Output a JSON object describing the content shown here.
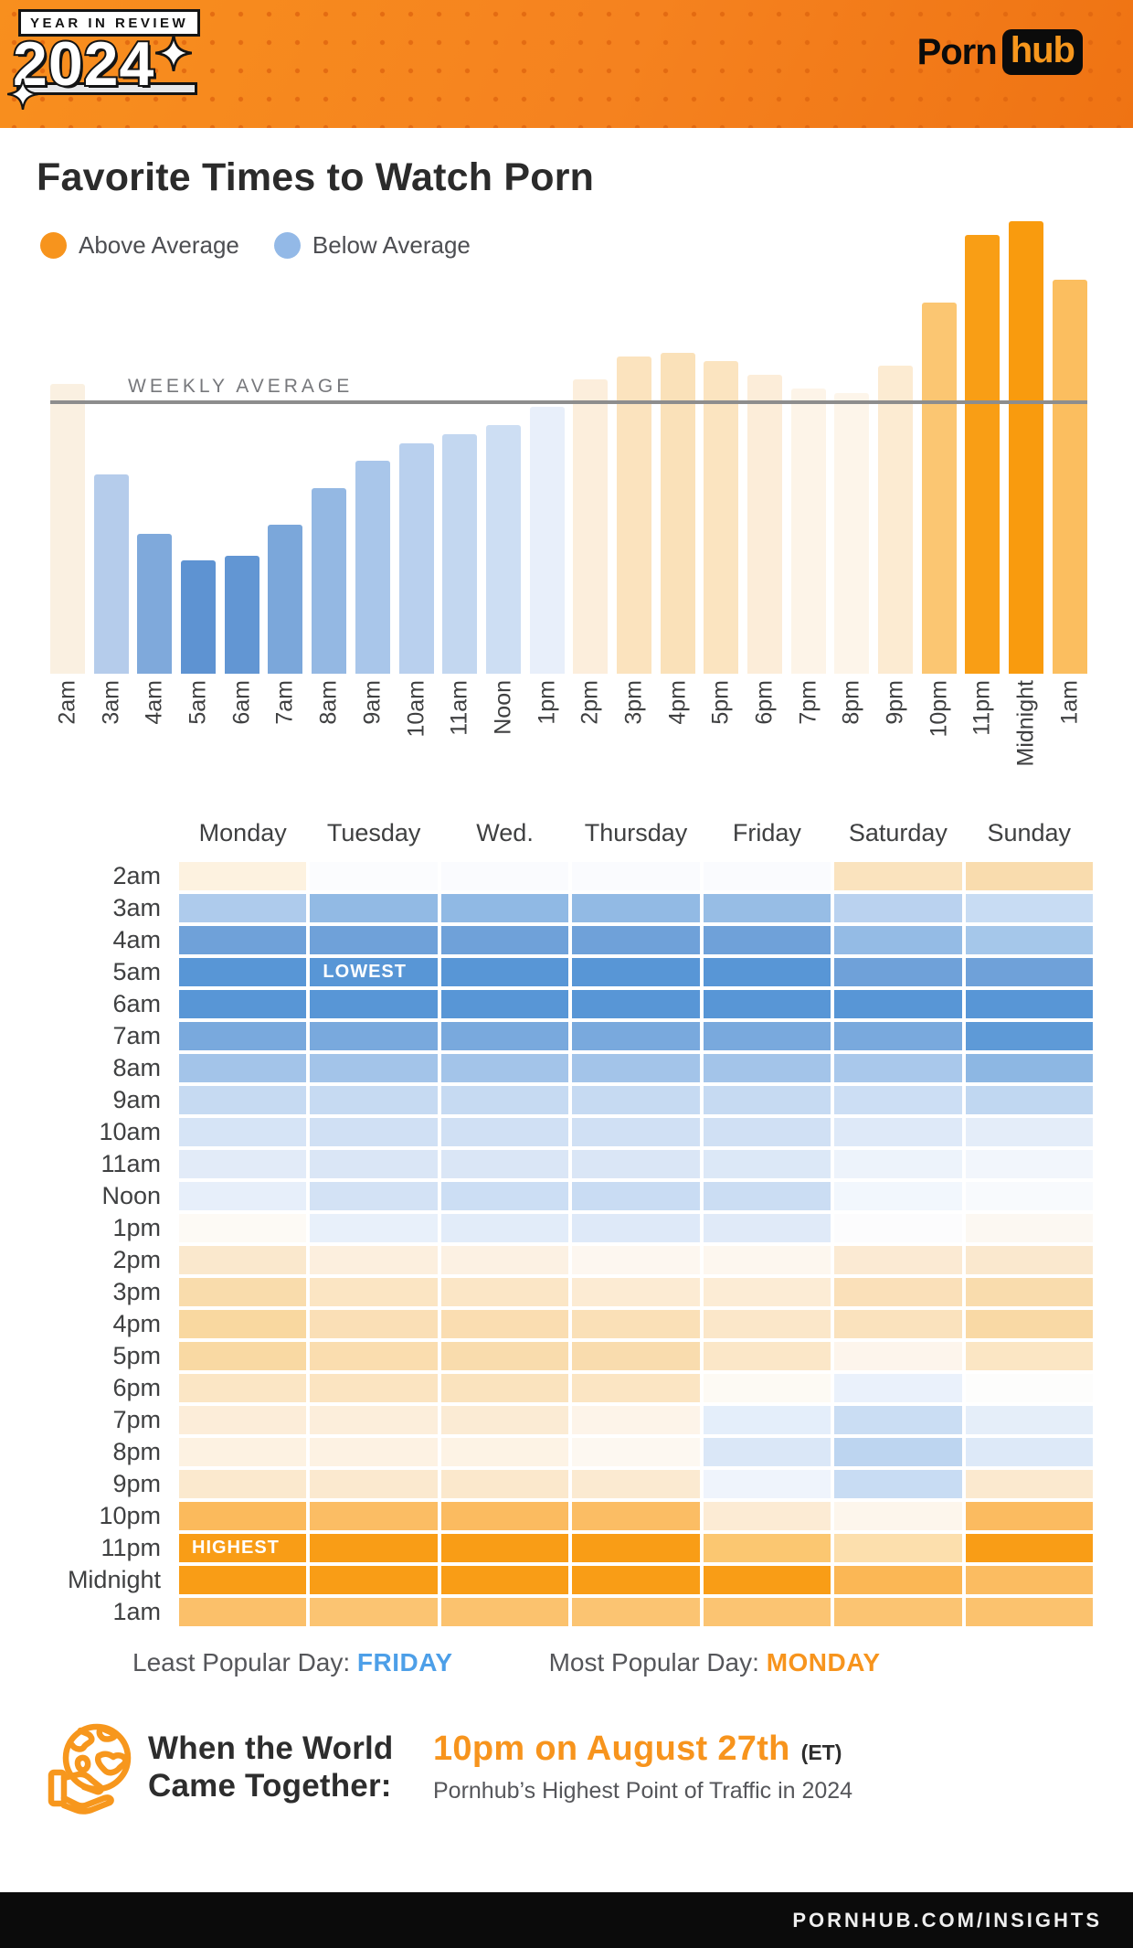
{
  "header": {
    "badge_label": "YEAR IN REVIEW",
    "badge_year": "2024",
    "brand_left": "Porn",
    "brand_right": "hub"
  },
  "title": "Favorite Times to Watch Porn",
  "legend": [
    {
      "label": "Above Average",
      "color": "#F7941D"
    },
    {
      "label": "Below Average",
      "color": "#93B9E7"
    }
  ],
  "chart_data": [
    {
      "type": "bar",
      "title": "Favorite Times to Watch Porn — traffic by hour",
      "categories": [
        "2am",
        "3am",
        "4am",
        "5am",
        "6am",
        "7am",
        "8am",
        "9am",
        "10am",
        "11am",
        "Noon",
        "1pm",
        "2pm",
        "3pm",
        "4pm",
        "5pm",
        "6pm",
        "7pm",
        "8pm",
        "9pm",
        "10pm",
        "11pm",
        "Midnight",
        "1am"
      ],
      "values_pct_of_peak": [
        64,
        44,
        31,
        25,
        26,
        33,
        41,
        47,
        51,
        53,
        55,
        59,
        65,
        70,
        71,
        69,
        66,
        63,
        62,
        68,
        82,
        97,
        100,
        87
      ],
      "weekly_average_pct_of_peak": 59.5,
      "average_label": "WEEKLY AVERAGE",
      "bar_colors": [
        "#FAF0E1",
        "#B5CCEB",
        "#7FA9DB",
        "#5E93D2",
        "#6296D3",
        "#7BA7DA",
        "#94B8E3",
        "#A9C6EA",
        "#B9D0EE",
        "#C3D7F0",
        "#CDDEF3",
        "#E8EFFA",
        "#FCEEDC",
        "#FBE3BE",
        "#FAE1B9",
        "#FBE4C0",
        "#FCEDD9",
        "#FDF4E8",
        "#FDF5EA",
        "#FCEBD2",
        "#FBC672",
        "#F99E15",
        "#F99B0E",
        "#FBBE5F"
      ],
      "legend_entries": [
        "Above Average (orange)",
        "Below Average (blue)"
      ],
      "grid": false,
      "ylabel": "",
      "xlabel": ""
    },
    {
      "type": "heatmap",
      "columns": [
        "Monday",
        "Tuesday",
        "Wed.",
        "Thursday",
        "Friday",
        "Saturday",
        "Sunday"
      ],
      "rows": [
        "2am",
        "3am",
        "4am",
        "5am",
        "6am",
        "7am",
        "8am",
        "9am",
        "10am",
        "11am",
        "Noon",
        "1pm",
        "2pm",
        "3pm",
        "4pm",
        "5pm",
        "6pm",
        "7pm",
        "8pm",
        "9pm",
        "10pm",
        "11pm",
        "Midnight",
        "1am"
      ],
      "encoding": "orange = above weekly average, blue = below weekly average",
      "cell_colors": [
        [
          "#FDF2E0",
          "#FBFCFE",
          "#FAFBFE",
          "#FAFBFE",
          "#FAFBFE",
          "#FAE3BE",
          "#F9DCAE"
        ],
        [
          "#AECBEC",
          "#92BAE4",
          "#90B9E4",
          "#92BAE4",
          "#97BDE5",
          "#BAD2EF",
          "#C8DCF3"
        ],
        [
          "#6FA1D9",
          "#6FA1D9",
          "#6FA1D9",
          "#6FA1D9",
          "#6FA1D9",
          "#94BBE5",
          "#A5C7EA"
        ],
        [
          "#5896D6",
          "#5896D6",
          "#5896D6",
          "#5896D6",
          "#5896D6",
          "#6FA1D9",
          "#6FA1D9"
        ],
        [
          "#5896D6",
          "#5896D6",
          "#5896D6",
          "#5896D6",
          "#5896D6",
          "#5896D6",
          "#5896D6"
        ],
        [
          "#79A9DD",
          "#79A9DD",
          "#79A9DD",
          "#79A9DD",
          "#79A9DD",
          "#79A9DD",
          "#5E9AD7"
        ],
        [
          "#A3C4E9",
          "#A3C4E9",
          "#A3C4E9",
          "#A3C4E9",
          "#A3C4E9",
          "#A9C8EB",
          "#8DB7E3"
        ],
        [
          "#C6DAF2",
          "#C6DAF2",
          "#C6DAF2",
          "#C6DAF2",
          "#C6DAF2",
          "#CCDEF4",
          "#C0D7F1"
        ],
        [
          "#D6E4F6",
          "#D0E0F4",
          "#D0E0F4",
          "#D0E0F4",
          "#D0E0F4",
          "#DEE9F8",
          "#E4EDF9"
        ],
        [
          "#E2EBF8",
          "#DAE6F6",
          "#DAE6F6",
          "#DAE6F6",
          "#DCE8F7",
          "#EDF3FB",
          "#F2F6FC"
        ],
        [
          "#E7EFFA",
          "#D3E2F5",
          "#CCDEF4",
          "#C9DCF3",
          "#CBDDF3",
          "#F2F7FD",
          "#F8FAFD"
        ],
        [
          "#FDFAF5",
          "#E8F0FA",
          "#E2ECF9",
          "#DEE9F8",
          "#E0EAF8",
          "#FCFCFD",
          "#FCF8F2"
        ],
        [
          "#FAE8CD",
          "#FCEFDE",
          "#FCF1E3",
          "#FDF7F0",
          "#FDF7EF",
          "#FBEAD3",
          "#FAE8CE"
        ],
        [
          "#F9DCAC",
          "#FBE5C3",
          "#FBE6C6",
          "#FCEBD3",
          "#FCECD5",
          "#FAE0B9",
          "#F9DCAD"
        ],
        [
          "#F9D8A0",
          "#FADFB6",
          "#FADDB1",
          "#FAE0B7",
          "#FBE7C9",
          "#FAE2BD",
          "#F9D9A5"
        ],
        [
          "#F9D9A3",
          "#FADDAF",
          "#F9DCAD",
          "#F9DCAE",
          "#FBE7C8",
          "#FDF5EC",
          "#FBE6C4"
        ],
        [
          "#FBE6C5",
          "#FBE4C1",
          "#FAE3BE",
          "#FBE5C3",
          "#FDFAF4",
          "#EAF1FB",
          "#FDFDFC"
        ],
        [
          "#FCEDD9",
          "#FCEEDB",
          "#FBEBD4",
          "#FDF4E9",
          "#E4EEFA",
          "#CADDF3",
          "#E5EEF9"
        ],
        [
          "#FDF2E2",
          "#FDF2E3",
          "#FDF3E5",
          "#FDF8F1",
          "#DAE7F7",
          "#BDD5F0",
          "#DDE9F8"
        ],
        [
          "#FBE9CE",
          "#FBE9CF",
          "#FBE8CC",
          "#FBEAD1",
          "#EFF4FC",
          "#C8DCF3",
          "#FBE9CF"
        ],
        [
          "#FBBA5C",
          "#FBBD64",
          "#FBBB60",
          "#FBBD64",
          "#FCEBD4",
          "#FDF6EC",
          "#FBBB60"
        ],
        [
          "#F99D16",
          "#F99D16",
          "#F99D16",
          "#F99D16",
          "#FBC771",
          "#FCDFAD",
          "#F99D16"
        ],
        [
          "#F99D16",
          "#F99D16",
          "#F99D16",
          "#F99D16",
          "#F99D16",
          "#FBB755",
          "#FBBC61"
        ],
        [
          "#FBC06A",
          "#FBC472",
          "#FBC26E",
          "#FBC472",
          "#FBC472",
          "#FBC472",
          "#FBC26E"
        ]
      ],
      "annotations": [
        {
          "row": "5am",
          "column": "Tuesday",
          "label": "LOWEST"
        },
        {
          "row": "11pm",
          "column": "Monday",
          "label": "HIGHEST"
        }
      ]
    }
  ],
  "stats": {
    "least_label": "Least Popular Day:",
    "least_value": "FRIDAY",
    "least_color": "#4D9FE8",
    "most_label": "Most Popular Day:",
    "most_value": "MONDAY",
    "most_color": "#F7941D"
  },
  "world": {
    "heading_line1": "When the World",
    "heading_line2": "Came Together:",
    "highlight": "10pm on August 27th",
    "suffix": "(ET)",
    "subtext": "Pornhub’s Highest Point of Traffic in 2024"
  },
  "footer": {
    "url": "PORNHUB.COM/INSIGHTS"
  }
}
